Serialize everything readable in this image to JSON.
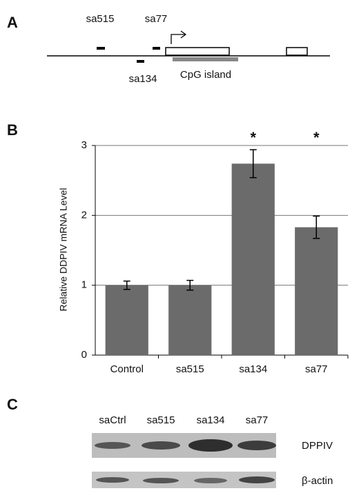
{
  "panel_labels": [
    "A",
    "B",
    "C"
  ],
  "panel_a": {
    "markers": [
      "sa515",
      "sa77",
      "sa134"
    ],
    "region": "CpG island"
  },
  "chart_data": {
    "type": "bar",
    "y_label": "Relative DDPIV mRNA Level",
    "categories": [
      "Control",
      "sa515",
      "sa134",
      "sa77"
    ],
    "values": [
      1.0,
      1.0,
      2.74,
      1.83
    ],
    "errors": [
      0.06,
      0.07,
      0.2,
      0.16
    ],
    "color": "#6b6b6b",
    "ylim": [
      0,
      3
    ],
    "yticks": [
      0,
      1,
      2,
      3
    ],
    "grid": true,
    "annotations": [
      {
        "text": "*",
        "x": "sa134"
      },
      {
        "text": "*",
        "x": "sa77"
      }
    ]
  },
  "panel_c": {
    "lanes": [
      "saCtrl",
      "sa515",
      "sa134",
      "sa77"
    ],
    "blots": [
      "DPPIV",
      "β-actin"
    ]
  }
}
